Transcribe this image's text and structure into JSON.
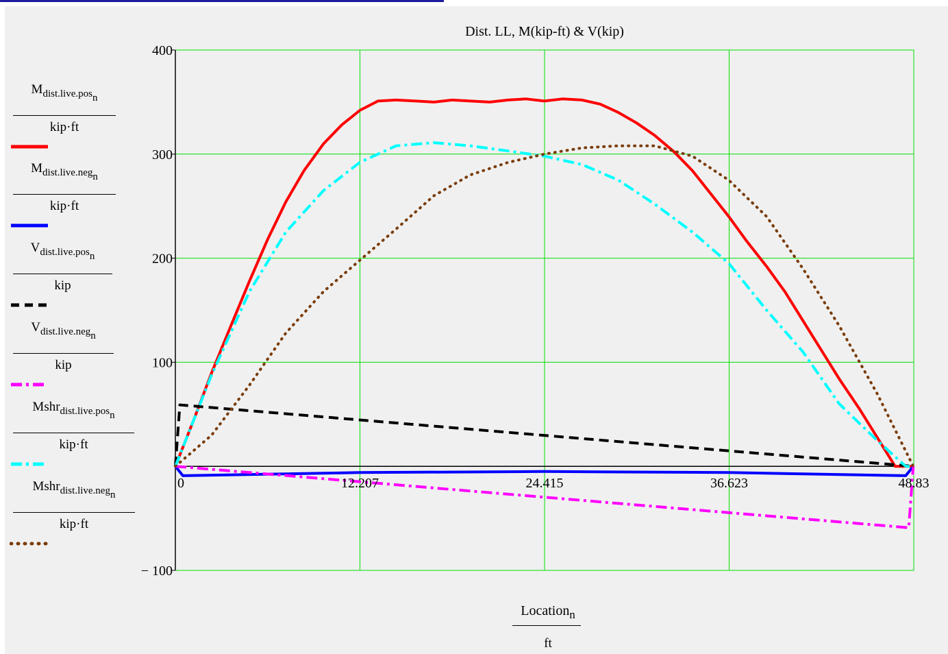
{
  "chart_data": {
    "type": "line",
    "title": "Dist. LL,  M(kip-ft) & V(kip)",
    "xlabel": "Location",
    "xlabel_sub": "n",
    "xunit": "ft",
    "xlim": [
      0,
      48.83
    ],
    "ylim": [
      -100,
      400
    ],
    "x_ticks": [
      "0",
      "12.207",
      "24.415",
      "36.623",
      "48.83"
    ],
    "x_tick_values": [
      0,
      12.207,
      24.415,
      36.623,
      48.83
    ],
    "y_ticks": [
      "400",
      "300",
      "200",
      "100",
      "− 100"
    ],
    "y_tick_values": [
      400,
      300,
      200,
      100,
      -100
    ],
    "grid": true,
    "series": [
      {
        "name_main": "M",
        "name_sub": "dist.live.pos",
        "name_subsub": "n",
        "unit": "kip·ft",
        "color": "#ff0000",
        "style": "solid",
        "x": [
          0,
          1.2,
          2.4,
          3.7,
          4.9,
          6.1,
          7.3,
          8.5,
          9.8,
          11.0,
          12.2,
          13.4,
          14.6,
          15.9,
          17.1,
          18.3,
          19.5,
          20.8,
          22.0,
          23.2,
          24.4,
          25.6,
          26.9,
          28.1,
          29.3,
          30.5,
          31.7,
          33.0,
          34.2,
          35.4,
          36.6,
          37.8,
          39.1,
          40.3,
          41.5,
          42.7,
          43.9,
          45.2,
          46.4,
          47.6,
          48.8
        ],
        "y": [
          0,
          44,
          90,
          136,
          178,
          218,
          254,
          284,
          310,
          328,
          342,
          351,
          352,
          351,
          350,
          352,
          351,
          350,
          352,
          353,
          351,
          353,
          352,
          348,
          340,
          330,
          318,
          302,
          284,
          262,
          240,
          216,
          192,
          168,
          140,
          112,
          84,
          56,
          28,
          0,
          0
        ]
      },
      {
        "name_main": "M",
        "name_sub": "dist.live.neg",
        "name_subsub": "n",
        "unit": "kip·ft",
        "color": "#0000ff",
        "style": "solid",
        "x": [
          0,
          0.5,
          12.2,
          24.4,
          36.6,
          48.3,
          48.8
        ],
        "y": [
          0,
          -9,
          -6,
          -5,
          -6,
          -9,
          0
        ]
      },
      {
        "name_main": "V",
        "name_sub": "dist.live.pos",
        "name_subsub": "n",
        "unit": "kip",
        "color": "#000000",
        "style": "dashed",
        "x": [
          0,
          0.3,
          48.8
        ],
        "y": [
          0,
          59,
          0
        ]
      },
      {
        "name_main": "V",
        "name_sub": "dist.live.neg",
        "name_subsub": "n",
        "unit": "kip",
        "color": "#ff00ff",
        "style": "dashdot",
        "x": [
          0,
          48.5,
          48.8
        ],
        "y": [
          0,
          -59,
          0
        ]
      },
      {
        "name_main": "Mshr",
        "name_sub": "dist.live.pos",
        "name_subsub": "n",
        "unit": "kip·ft",
        "color": "#00ffff",
        "style": "dashdot",
        "x": [
          0,
          2.4,
          4.9,
          7.3,
          9.8,
          12.2,
          14.6,
          17.1,
          19.5,
          22.0,
          24.4,
          26.9,
          29.3,
          31.7,
          34.2,
          36.6,
          39.1,
          41.5,
          43.9,
          46.4,
          48.3,
          48.8
        ],
        "y": [
          0,
          88,
          168,
          225,
          265,
          292,
          308,
          311,
          308,
          303,
          298,
          290,
          275,
          252,
          225,
          195,
          150,
          110,
          60,
          25,
          0,
          0
        ]
      },
      {
        "name_main": "Mshr",
        "name_sub": "dist.live.neg",
        "name_subsub": "n",
        "unit": "kip·ft",
        "color": "#7a3c0a",
        "style": "dotted",
        "x": [
          0,
          2.4,
          4.9,
          7.3,
          9.8,
          12.2,
          14.6,
          17.1,
          19.5,
          22.0,
          24.4,
          26.9,
          29.3,
          31.7,
          34.2,
          36.6,
          39.1,
          41.5,
          43.9,
          46.4,
          48.8
        ],
        "y": [
          0,
          30,
          78,
          128,
          168,
          198,
          228,
          260,
          280,
          292,
          300,
          306,
          308,
          308,
          298,
          275,
          240,
          190,
          135,
          70,
          0
        ]
      }
    ]
  }
}
